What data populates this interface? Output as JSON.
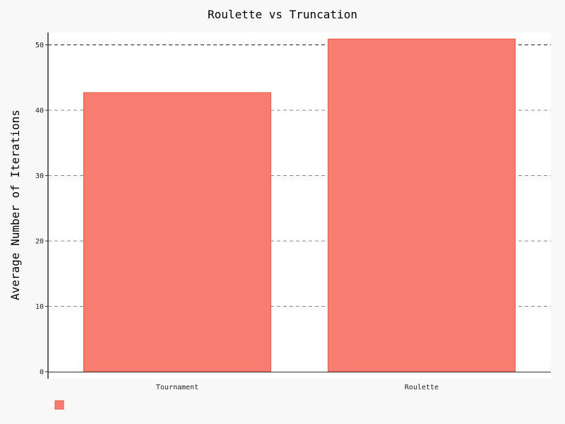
{
  "chart_data": {
    "type": "bar",
    "title": "Roulette vs Truncation",
    "xlabel": "",
    "ylabel": "Average Number of Iterations",
    "categories": [
      "Tournament",
      "Roulette"
    ],
    "series": [
      {
        "values": [
          42.7,
          50.9
        ]
      }
    ],
    "ylim": [
      0,
      52
    ],
    "yticks": [
      0,
      10,
      20,
      30,
      40,
      50
    ],
    "ytick_labels": [
      "0",
      "10",
      "20",
      "30",
      "40",
      "50"
    ],
    "grid": true,
    "legend": "bottom-left",
    "colors": {
      "bar_fill": "#f87c70",
      "bar_stroke": "#e8594d",
      "plot_background": "#ffffff",
      "page_background": "#f8f8f8",
      "grid": "#888888",
      "axis": "#333333"
    }
  }
}
